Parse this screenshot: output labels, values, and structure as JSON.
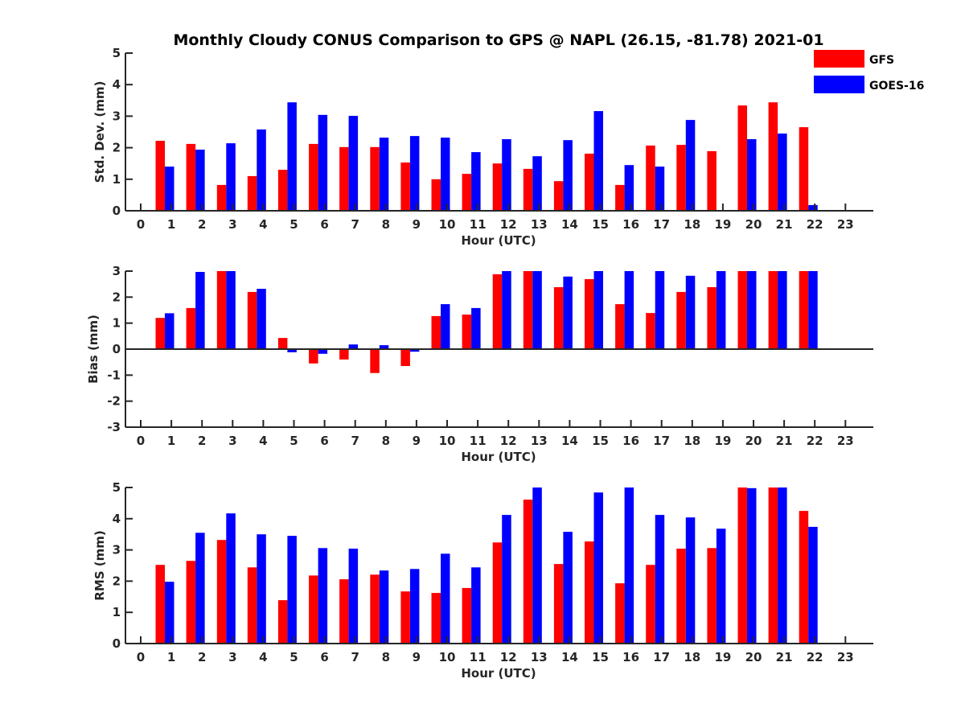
{
  "chart_data": {
    "type": "bar",
    "title": "Monthly Cloudy CONUS Comparison to GPS @ NAPL (26.15, -81.78) 2021-01",
    "legend": {
      "placement": "top-right",
      "entries": [
        {
          "name": "GFS",
          "color": "#ff0000"
        },
        {
          "name": "GOES-16",
          "color": "#0000ff"
        }
      ]
    },
    "categories": [
      "0",
      "1",
      "2",
      "3",
      "4",
      "5",
      "6",
      "7",
      "8",
      "9",
      "10",
      "11",
      "12",
      "13",
      "14",
      "15",
      "16",
      "17",
      "18",
      "19",
      "20",
      "21",
      "22",
      "23"
    ],
    "panels": [
      {
        "id": "std",
        "xlabel": "Hour (UTC)",
        "ylabel": "Std. Dev. (mm)",
        "ylim": [
          0,
          5
        ],
        "yticks": [
          0,
          1,
          2,
          3,
          4,
          5
        ],
        "grid": false,
        "series": [
          {
            "name": "GFS",
            "values": [
              null,
              2.22,
              2.12,
              0.82,
              1.1,
              1.3,
              2.12,
              2.02,
              2.02,
              1.53,
              1.0,
              1.17,
              1.5,
              1.33,
              0.94,
              1.81,
              0.82,
              2.07,
              2.09,
              1.89,
              3.34,
              3.44,
              2.65,
              null
            ]
          },
          {
            "name": "GOES-16",
            "values": [
              null,
              1.4,
              1.94,
              2.14,
              2.58,
              3.44,
              3.04,
              3.01,
              2.32,
              2.37,
              2.32,
              1.86,
              2.27,
              1.73,
              2.24,
              3.16,
              1.45,
              1.4,
              2.88,
              null,
              2.27,
              2.45,
              0.18,
              null
            ]
          }
        ]
      },
      {
        "id": "bias",
        "xlabel": "Hour (UTC)",
        "ylabel": "Bias (mm)",
        "ylim": [
          -3,
          3
        ],
        "yticks": [
          -3,
          -2,
          -1,
          0,
          1,
          2,
          3
        ],
        "grid": false,
        "series": [
          {
            "name": "GFS",
            "values": [
              null,
              1.2,
              1.58,
              3.0,
              2.2,
              0.43,
              -0.55,
              -0.4,
              -0.92,
              -0.65,
              1.27,
              1.33,
              2.88,
              3.0,
              2.38,
              2.69,
              1.73,
              1.39,
              2.2,
              2.38,
              3.0,
              3.0,
              3.0,
              null
            ]
          },
          {
            "name": "GOES-16",
            "values": [
              null,
              1.38,
              2.97,
              3.0,
              2.32,
              -0.12,
              -0.18,
              0.18,
              0.15,
              -0.1,
              1.73,
              1.58,
              3.0,
              3.0,
              2.79,
              3.0,
              3.0,
              3.0,
              2.82,
              3.0,
              3.0,
              3.0,
              3.0,
              null
            ]
          }
        ]
      },
      {
        "id": "rms",
        "xlabel": "Hour (UTC)",
        "ylabel": "RMS (mm)",
        "ylim": [
          0,
          5
        ],
        "yticks": [
          0,
          1,
          2,
          3,
          4,
          5
        ],
        "grid": false,
        "series": [
          {
            "name": "GFS",
            "values": [
              null,
              2.52,
              2.65,
              3.32,
              2.44,
              1.39,
              2.18,
              2.06,
              2.21,
              1.67,
              1.62,
              1.78,
              3.24,
              4.61,
              2.55,
              3.27,
              1.93,
              2.52,
              3.04,
              3.06,
              5.0,
              5.0,
              4.25,
              null
            ]
          },
          {
            "name": "GOES-16",
            "values": [
              null,
              1.98,
              3.55,
              4.17,
              3.5,
              3.45,
              3.06,
              3.04,
              2.34,
              2.39,
              2.88,
              2.44,
              4.12,
              5.0,
              3.58,
              4.84,
              5.0,
              4.12,
              4.04,
              3.68,
              4.98,
              5.0,
              3.74,
              null
            ]
          }
        ]
      }
    ]
  }
}
